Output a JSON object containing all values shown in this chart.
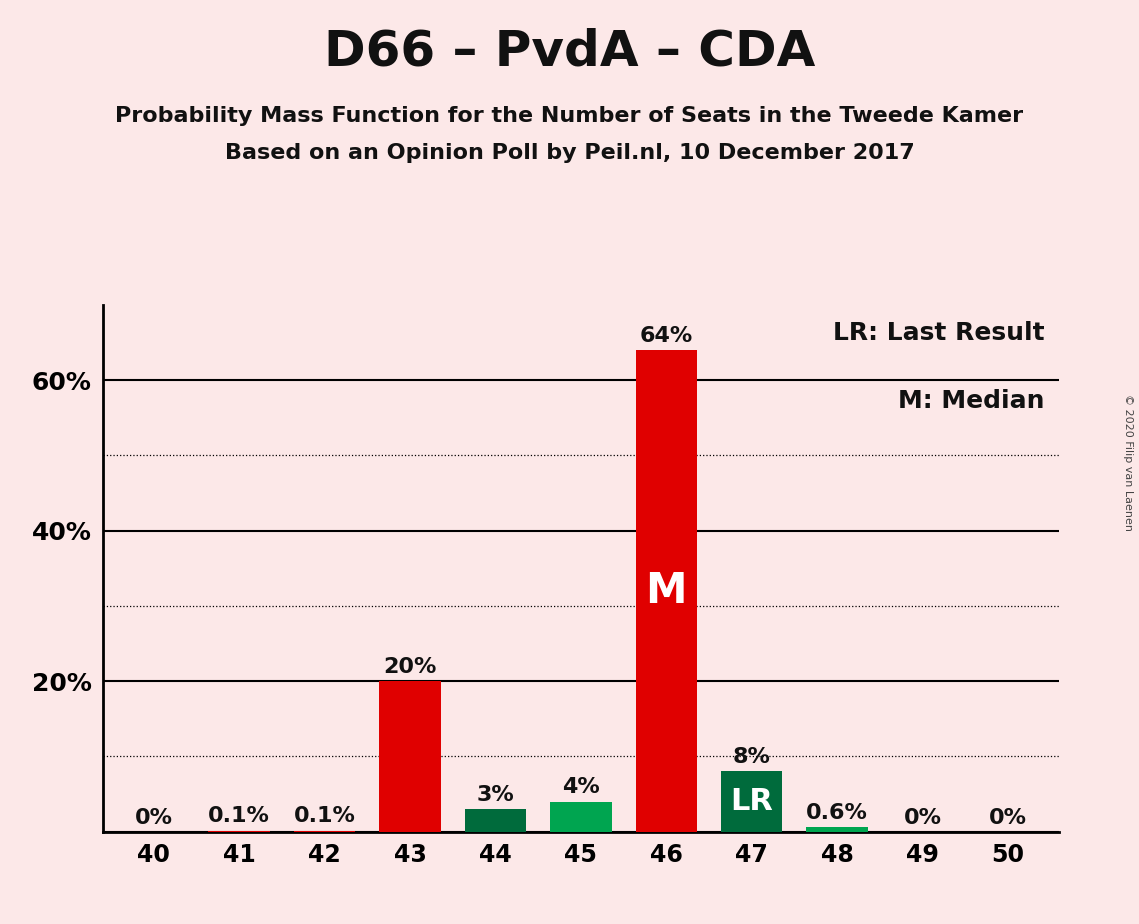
{
  "title": "D66 – PvdA – CDA",
  "subtitle1": "Probability Mass Function for the Number of Seats in the Tweede Kamer",
  "subtitle2": "Based on an Opinion Poll by Peil.nl, 10 December 2017",
  "copyright": "© 2020 Filip van Laenen",
  "categories": [
    40,
    41,
    42,
    43,
    44,
    45,
    46,
    47,
    48,
    49,
    50
  ],
  "values": [
    0.0,
    0.1,
    0.1,
    20.0,
    3.0,
    4.0,
    64.0,
    8.0,
    0.6,
    0.0,
    0.0
  ],
  "labels": [
    "0%",
    "0.1%",
    "0.1%",
    "20%",
    "3%",
    "4%",
    "64%",
    "8%",
    "0.6%",
    "0%",
    "0%"
  ],
  "bar_colors": [
    "#e00000",
    "#e00000",
    "#e00000",
    "#e00000",
    "#006b3c",
    "#00a550",
    "#e00000",
    "#006b3c",
    "#00a550",
    "#00a550",
    "#00a550"
  ],
  "median_bar_idx": 6,
  "lr_bar_idx": 7,
  "background_color": "#fce8e8",
  "bar_label_color": "#111111",
  "bar_inside_label_color": "#ffffff",
  "legend_text1": "LR: Last Result",
  "legend_text2": "M: Median",
  "ylim": [
    0,
    70
  ],
  "solid_gridlines": [
    0,
    20,
    40,
    60
  ],
  "dotted_gridlines": [
    10,
    30,
    50
  ],
  "ytick_positions": [
    20,
    40,
    60
  ],
  "ytick_labels": [
    "20%",
    "40%",
    "60%"
  ],
  "title_fontsize": 36,
  "subtitle_fontsize": 16,
  "label_fontsize": 16,
  "tick_fontsize": 17,
  "legend_fontsize": 18,
  "m_label_fontsize": 30,
  "lr_label_fontsize": 22
}
